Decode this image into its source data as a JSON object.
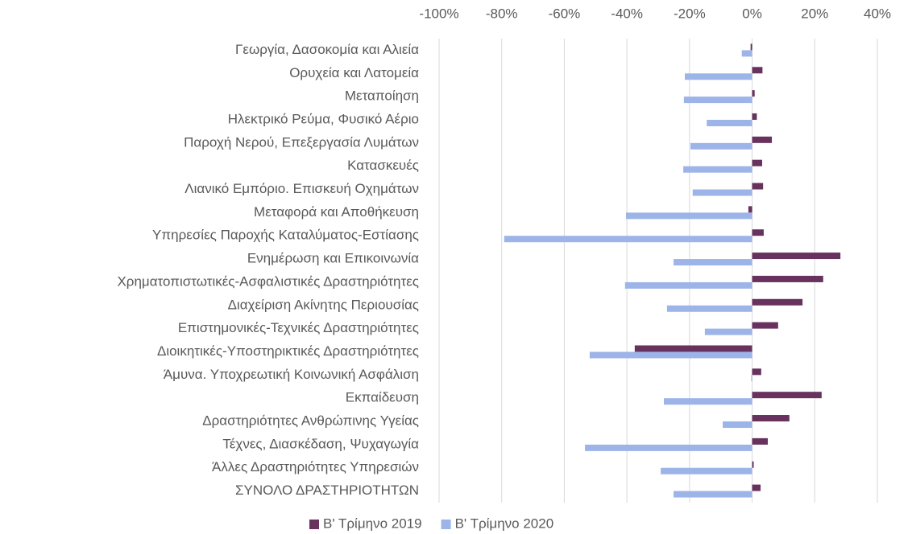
{
  "chart_data": {
    "type": "barh",
    "categories": [
      "Γεωργία, Δασοκομία και Αλιεία",
      "Ορυχεία και Λατομεία",
      "Μεταποίηση",
      "Ηλεκτρικό Ρεύμα, Φυσικό Αέριο",
      "Παροχή Νερού, Επεξεργασία Λυμάτων",
      "Κατασκευές",
      "Λιανικό Εμπόριο. Επισκευή Οχημάτων",
      "Μεταφορά και Αποθήκευση",
      "Υπηρεσίες Παροχής Καταλύματος-Εστίασης",
      "Ενημέρωση και Επικοινωνία",
      "Χρηματοπιστωτικές-Ασφαλιστικές Δραστηριότητες",
      "Διαχείριση Ακίνητης Περιουσίας",
      "Επιστημονικές-Τεχνικές Δραστηριότητες",
      "Διοικητικές-Υποστηρικτικές Δραστηριότητες",
      "Άμυνα. Υποχρεωτική Κοινωνική Ασφάλιση",
      "Εκπαίδευση",
      "Δραστηριότητες Ανθρώπινης Υγείας",
      "Τέχνες, Διασκέδαση, Ψυχαγωγία",
      "Άλλες Δραστηριότητες Υπηρεσιών",
      "ΣΥΝΟΛΟ ΔΡΑΣΤΗΡΙΟΤΗΤΩΝ"
    ],
    "series": [
      {
        "name": "Β' Τρίμηνο 2019",
        "color": "#68325e",
        "values": [
          -0.5,
          3.3,
          0.8,
          1.5,
          6.3,
          3.2,
          3.5,
          -1.2,
          3.7,
          28.2,
          22.7,
          16.1,
          8.3,
          -37.5,
          2.9,
          22.2,
          11.9,
          5.0,
          0.5,
          2.7
        ]
      },
      {
        "name": "Β' Τρίμηνο 2020",
        "color": "#9db4e8",
        "values": [
          -3.3,
          -21.5,
          -21.8,
          -14.5,
          -19.7,
          -22.0,
          -19.0,
          -40.3,
          -79.2,
          -25.1,
          -40.6,
          -27.2,
          -15.1,
          -51.9,
          -0.3,
          -28.2,
          -9.4,
          -53.4,
          -29.2,
          -25.1
        ]
      }
    ],
    "xlim": [
      -100,
      40
    ],
    "xticks": [
      {
        "value": -100,
        "label": "-100%"
      },
      {
        "value": -80,
        "label": "-80%"
      },
      {
        "value": -60,
        "label": "-60%"
      },
      {
        "value": -40,
        "label": "-40%"
      },
      {
        "value": -20,
        "label": "-20%"
      },
      {
        "value": 0,
        "label": "0%"
      },
      {
        "value": 20,
        "label": "20%"
      },
      {
        "value": 40,
        "label": "40%"
      }
    ],
    "grid": true,
    "legend": "bottom"
  }
}
